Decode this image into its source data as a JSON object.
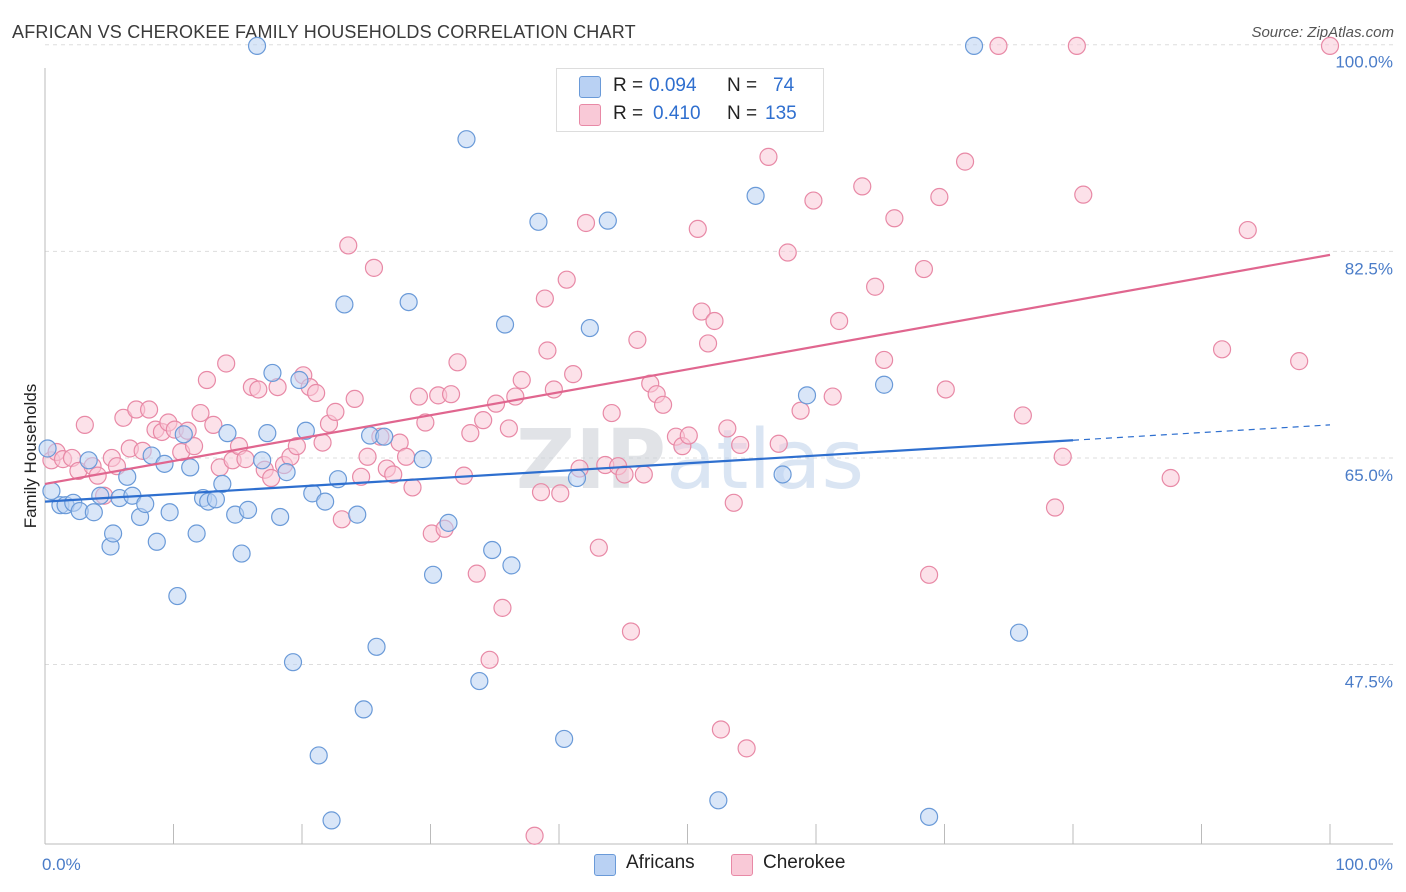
{
  "title": "AFRICAN VS CHEROKEE FAMILY HOUSEHOLDS CORRELATION CHART",
  "source": "Source: ZipAtlas.com",
  "watermark": "ZIPatlas",
  "colors": {
    "blue_fill": "#b9d1f3",
    "blue_stroke": "#6a9ad8",
    "blue_line": "#2e6fcf",
    "pink_fill": "#f9c9d7",
    "pink_stroke": "#e889a6",
    "pink_line": "#e0668f",
    "tick_text": "#4a7cc8",
    "grid": "#dddddd"
  },
  "legend": {
    "rows": [
      {
        "r_label": "R =",
        "r_value": "0.094",
        "n_label": "N =",
        "n_value": "74"
      },
      {
        "r_label": "R =",
        "r_value": "0.410",
        "n_label": "N =",
        "n_value": "135"
      }
    ]
  },
  "bottom_legend": {
    "africans": "Africans",
    "cherokee": "Cherokee"
  },
  "chart_data": {
    "type": "scatter",
    "title": "AFRICAN VS CHEROKEE FAMILY HOUSEHOLDS CORRELATION CHART",
    "xlabel": "",
    "ylabel": "Family Households",
    "xlim": [
      0,
      100
    ],
    "ylim": [
      32.3,
      100.4
    ],
    "y_ticks": [
      47.5,
      65.0,
      82.5,
      100.0
    ],
    "y_tick_labels": [
      "47.5%",
      "65.0%",
      "82.5%",
      "100.0%"
    ],
    "x_tick_labels": [
      "0.0%",
      "100.0%"
    ],
    "grid": true,
    "legend_placement": "top-center",
    "series": [
      {
        "name": "Africans",
        "R": 0.094,
        "N": 74,
        "trend": {
          "x0": 0,
          "y0": 61.3,
          "x1": 80,
          "y1": 66.5,
          "dashed_to_x": 100,
          "dashed_to_y": 67.8
        },
        "points": [
          [
            0.2,
            65.8
          ],
          [
            0.5,
            62.2
          ],
          [
            1.2,
            61
          ],
          [
            1.6,
            61
          ],
          [
            2.2,
            61.2
          ],
          [
            2.7,
            60.5
          ],
          [
            3.4,
            64.8
          ],
          [
            3.8,
            60.4
          ],
          [
            4.3,
            61.8
          ],
          [
            5.1,
            57.5
          ],
          [
            5.3,
            58.6
          ],
          [
            5.8,
            61.6
          ],
          [
            6.4,
            63.4
          ],
          [
            6.8,
            61.8
          ],
          [
            7.4,
            60
          ],
          [
            7.8,
            61.1
          ],
          [
            8.3,
            65.2
          ],
          [
            8.7,
            57.9
          ],
          [
            9.3,
            64.5
          ],
          [
            9.7,
            60.4
          ],
          [
            10.3,
            53.3
          ],
          [
            10.8,
            67
          ],
          [
            11.3,
            64.2
          ],
          [
            11.8,
            58.6
          ],
          [
            12.3,
            61.6
          ],
          [
            12.7,
            61.3
          ],
          [
            13.3,
            61.5
          ],
          [
            13.8,
            62.8
          ],
          [
            14.2,
            67.1
          ],
          [
            14.8,
            60.2
          ],
          [
            15.3,
            56.9
          ],
          [
            15.8,
            60.6
          ],
          [
            16.5,
            99.9
          ],
          [
            16.9,
            64.8
          ],
          [
            17.3,
            67.1
          ],
          [
            17.7,
            72.2
          ],
          [
            18.3,
            60
          ],
          [
            18.8,
            63.8
          ],
          [
            19.3,
            47.7
          ],
          [
            19.8,
            71.6
          ],
          [
            20.3,
            67.3
          ],
          [
            20.8,
            62
          ],
          [
            21.3,
            39.8
          ],
          [
            21.8,
            61.3
          ],
          [
            22.3,
            34.3
          ],
          [
            22.8,
            63.2
          ],
          [
            23.3,
            78
          ],
          [
            24.3,
            60.2
          ],
          [
            24.8,
            43.7
          ],
          [
            25.3,
            66.9
          ],
          [
            25.8,
            49
          ],
          [
            26.4,
            66.8
          ],
          [
            28.3,
            78.2
          ],
          [
            29.4,
            64.9
          ],
          [
            30.2,
            55.1
          ],
          [
            31.4,
            59.5
          ],
          [
            32.8,
            92
          ],
          [
            33.8,
            46.1
          ],
          [
            34.8,
            57.2
          ],
          [
            35.8,
            76.3
          ],
          [
            36.3,
            55.9
          ],
          [
            38.4,
            85
          ],
          [
            40.4,
            41.2
          ],
          [
            41.4,
            63.3
          ],
          [
            42.4,
            76
          ],
          [
            43.8,
            85.1
          ],
          [
            52.4,
            36
          ],
          [
            55.3,
            87.2
          ],
          [
            57.4,
            63.6
          ],
          [
            59.3,
            70.3
          ],
          [
            65.3,
            71.2
          ],
          [
            68.8,
            34.6
          ],
          [
            72.3,
            99.9
          ],
          [
            75.8,
            50.2
          ]
        ]
      },
      {
        "name": "Cherokee",
        "R": 0.41,
        "N": 135,
        "trend": {
          "x0": 0,
          "y0": 62.8,
          "x1": 100,
          "y1": 82.2
        },
        "points": [
          [
            0.5,
            64.8
          ],
          [
            0.9,
            65.5
          ],
          [
            1.4,
            64.9
          ],
          [
            2.1,
            65
          ],
          [
            2.6,
            63.9
          ],
          [
            3.1,
            67.8
          ],
          [
            3.7,
            64.3
          ],
          [
            4.1,
            63.5
          ],
          [
            4.6,
            61.8
          ],
          [
            5.2,
            65
          ],
          [
            5.6,
            64.3
          ],
          [
            6.1,
            68.4
          ],
          [
            6.6,
            65.8
          ],
          [
            7.1,
            69.1
          ],
          [
            7.6,
            65.6
          ],
          [
            8.1,
            69.1
          ],
          [
            8.6,
            67.4
          ],
          [
            9.1,
            67.2
          ],
          [
            9.6,
            68
          ],
          [
            10.1,
            67.4
          ],
          [
            10.6,
            65.5
          ],
          [
            11.1,
            67.3
          ],
          [
            11.6,
            66
          ],
          [
            12.1,
            68.8
          ],
          [
            12.6,
            71.6
          ],
          [
            13.1,
            67.8
          ],
          [
            13.6,
            64.2
          ],
          [
            14.1,
            73
          ],
          [
            14.6,
            64.8
          ],
          [
            15.1,
            66
          ],
          [
            15.6,
            64.9
          ],
          [
            16.1,
            71
          ],
          [
            16.6,
            70.8
          ],
          [
            17.1,
            64
          ],
          [
            17.6,
            63.3
          ],
          [
            18.1,
            71
          ],
          [
            18.6,
            64.4
          ],
          [
            19.1,
            65.1
          ],
          [
            19.6,
            66
          ],
          [
            20.1,
            72
          ],
          [
            20.6,
            71
          ],
          [
            21.1,
            70.5
          ],
          [
            21.6,
            66.3
          ],
          [
            22.1,
            67.9
          ],
          [
            22.6,
            68.9
          ],
          [
            23.1,
            59.8
          ],
          [
            23.6,
            83
          ],
          [
            24.1,
            70
          ],
          [
            24.6,
            63.4
          ],
          [
            25.1,
            65.1
          ],
          [
            25.6,
            81.1
          ],
          [
            26.1,
            66.8
          ],
          [
            26.6,
            64.1
          ],
          [
            27.1,
            63.6
          ],
          [
            27.6,
            66.3
          ],
          [
            28.1,
            65.1
          ],
          [
            28.6,
            62.5
          ],
          [
            29.1,
            70.2
          ],
          [
            29.6,
            68
          ],
          [
            30.1,
            58.6
          ],
          [
            30.6,
            70.3
          ],
          [
            31.1,
            59
          ],
          [
            31.6,
            70.4
          ],
          [
            32.1,
            73.1
          ],
          [
            32.6,
            63.5
          ],
          [
            33.1,
            67.1
          ],
          [
            33.6,
            55.2
          ],
          [
            34.1,
            68.2
          ],
          [
            34.6,
            47.9
          ],
          [
            35.1,
            69.6
          ],
          [
            35.6,
            52.3
          ],
          [
            36.1,
            67.5
          ],
          [
            36.6,
            70.2
          ],
          [
            37.1,
            71.6
          ],
          [
            38.1,
            33
          ],
          [
            38.6,
            62.1
          ],
          [
            38.9,
            78.5
          ],
          [
            39.1,
            74.1
          ],
          [
            39.6,
            70.8
          ],
          [
            40.1,
            62
          ],
          [
            40.6,
            80.1
          ],
          [
            41.1,
            72.1
          ],
          [
            41.6,
            64.1
          ],
          [
            42.1,
            84.9
          ],
          [
            43.1,
            57.4
          ],
          [
            43.6,
            64.4
          ],
          [
            44.1,
            68.8
          ],
          [
            44.6,
            64.3
          ],
          [
            45.1,
            63.6
          ],
          [
            45.6,
            50.3
          ],
          [
            46.1,
            75
          ],
          [
            46.6,
            63.6
          ],
          [
            47.1,
            71.3
          ],
          [
            47.6,
            70.4
          ],
          [
            48.1,
            69.5
          ],
          [
            48.6,
            94.3
          ],
          [
            49.1,
            66.8
          ],
          [
            49.6,
            66
          ],
          [
            50.1,
            66.9
          ],
          [
            50.8,
            84.4
          ],
          [
            51.1,
            77.4
          ],
          [
            51.6,
            74.7
          ],
          [
            52.1,
            76.6
          ],
          [
            52.6,
            42
          ],
          [
            53.1,
            67.5
          ],
          [
            53.6,
            61.2
          ],
          [
            54.1,
            66.1
          ],
          [
            54.6,
            40.4
          ],
          [
            56.3,
            90.5
          ],
          [
            57.1,
            66.2
          ],
          [
            57.8,
            82.4
          ],
          [
            58.8,
            69
          ],
          [
            59.8,
            86.8
          ],
          [
            61.3,
            70.2
          ],
          [
            61.8,
            76.6
          ],
          [
            63.6,
            88
          ],
          [
            64.6,
            79.5
          ],
          [
            65.3,
            73.3
          ],
          [
            66.1,
            85.3
          ],
          [
            68.4,
            81
          ],
          [
            68.8,
            55.1
          ],
          [
            69.6,
            87.1
          ],
          [
            70.1,
            70.8
          ],
          [
            71.6,
            90.1
          ],
          [
            74.2,
            99.9
          ],
          [
            76.1,
            68.6
          ],
          [
            78.6,
            60.8
          ],
          [
            79.2,
            65.1
          ],
          [
            80.3,
            99.9
          ],
          [
            80.8,
            87.3
          ],
          [
            87.6,
            63.3
          ],
          [
            91.6,
            74.2
          ],
          [
            93.6,
            84.3
          ],
          [
            97.6,
            73.2
          ],
          [
            100,
            99.9
          ]
        ]
      }
    ]
  }
}
